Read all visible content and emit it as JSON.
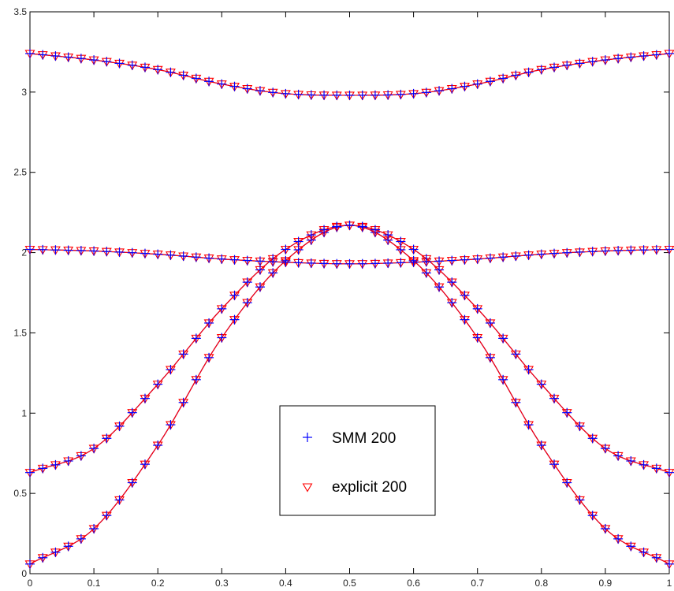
{
  "chart_data": {
    "type": "scatter",
    "title": "",
    "xlabel": "",
    "ylabel": "",
    "xlim": [
      0,
      1
    ],
    "ylim": [
      0,
      3.5
    ],
    "grid": false,
    "legend_position": "center-right-lower",
    "x_ticks": [
      "0",
      "0.1",
      "0.2",
      "0.3",
      "0.4",
      "0.5",
      "0.6",
      "0.7",
      "0.8",
      "0.9",
      "1"
    ],
    "y_ticks": [
      "0",
      "0.5",
      "1",
      "1.5",
      "2",
      "2.5",
      "3",
      "3.5"
    ],
    "series": [
      {
        "name": "SMM 200",
        "marker": "plus",
        "color": "#0000ff"
      },
      {
        "name": "explicit 200",
        "marker": "triangle-down",
        "color": "#ff0000"
      }
    ],
    "bands": [
      {
        "id": "band1",
        "x": [
          0,
          0.1,
          0.2,
          0.3,
          0.4,
          0.5,
          0.6,
          0.7,
          0.8,
          0.9,
          1
        ],
        "y": [
          0.06,
          0.28,
          0.8,
          1.47,
          1.95,
          2.17,
          1.95,
          1.47,
          0.8,
          0.28,
          0.06
        ]
      },
      {
        "id": "band2",
        "x": [
          0,
          0.1,
          0.2,
          0.3,
          0.4,
          0.5,
          0.6,
          0.7,
          0.8,
          0.9,
          1
        ],
        "y": [
          0.63,
          0.78,
          1.18,
          1.65,
          2.02,
          2.17,
          2.02,
          1.65,
          1.18,
          0.78,
          0.63
        ]
      },
      {
        "id": "band3",
        "x": [
          0,
          0.1,
          0.2,
          0.3,
          0.4,
          0.5,
          0.6,
          0.7,
          0.8,
          0.9,
          1
        ],
        "y": [
          2.02,
          2.01,
          1.99,
          1.96,
          1.94,
          1.93,
          1.94,
          1.96,
          1.99,
          2.01,
          2.02
        ]
      },
      {
        "id": "band4",
        "x": [
          0,
          0.1,
          0.2,
          0.3,
          0.4,
          0.5,
          0.6,
          0.7,
          0.8,
          0.9,
          1
        ],
        "y": [
          3.24,
          3.2,
          3.14,
          3.05,
          2.99,
          2.98,
          2.99,
          3.05,
          3.14,
          3.2,
          3.24
        ]
      }
    ]
  }
}
